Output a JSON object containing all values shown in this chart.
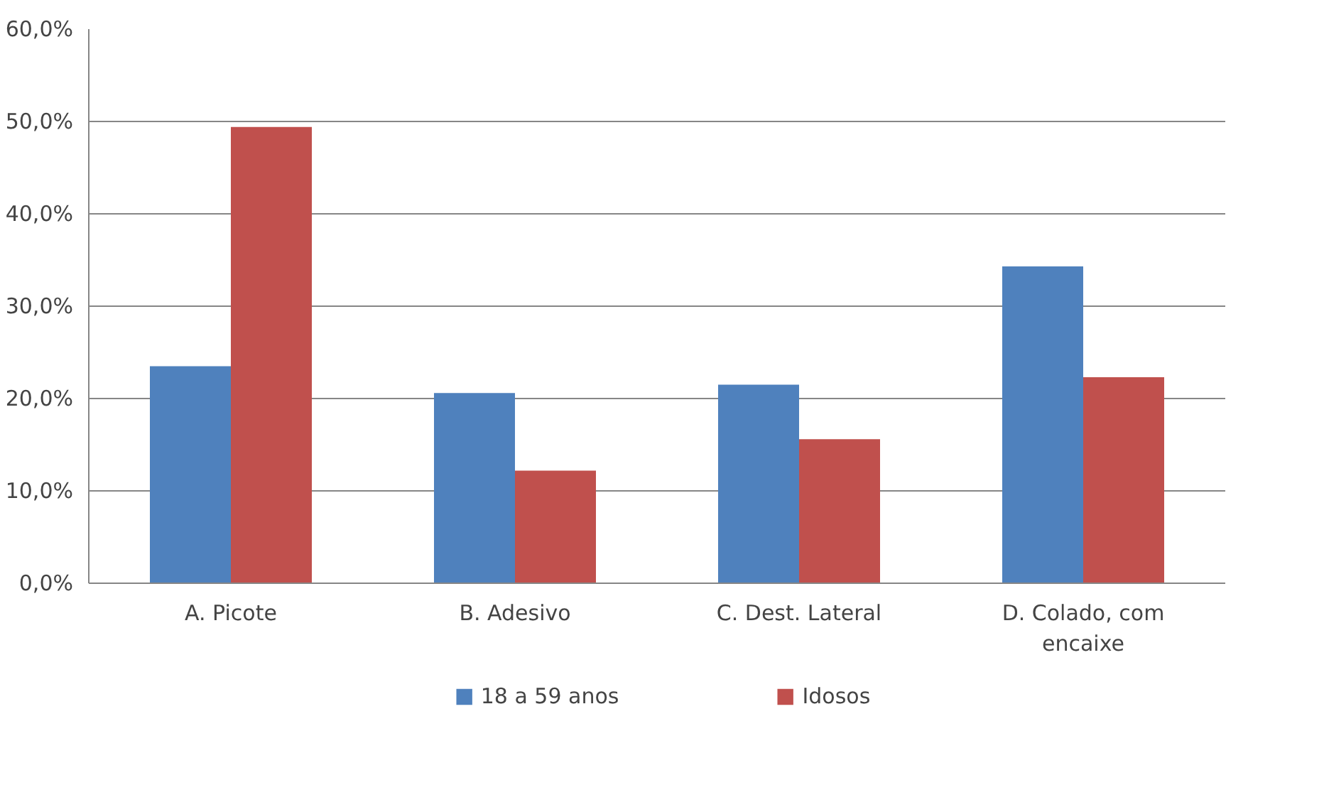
{
  "chart_data": {
    "type": "bar",
    "categories": [
      "A. Picote",
      "B. Adesivo",
      "C. Dest. Lateral",
      "D. Colado, com encaixe"
    ],
    "series": [
      {
        "name": "18 a 59 anos",
        "color": "#4f81bd",
        "values": [
          23.5,
          20.6,
          21.5,
          34.3
        ]
      },
      {
        "name": "Idosos",
        "color": "#c0504d",
        "values": [
          49.4,
          12.2,
          15.6,
          22.3
        ]
      }
    ],
    "ylim": [
      0,
      60
    ],
    "yticks": [
      {
        "value": 0,
        "label": "0,0%"
      },
      {
        "value": 10,
        "label": "10,0%"
      },
      {
        "value": 20,
        "label": "20,0%"
      },
      {
        "value": 30,
        "label": "30,0%"
      },
      {
        "value": 40,
        "label": "40,0%"
      },
      {
        "value": 50,
        "label": "50,0%"
      },
      {
        "value": 60,
        "label": "60,0%"
      }
    ],
    "grid": "y",
    "legend": "bottom"
  }
}
